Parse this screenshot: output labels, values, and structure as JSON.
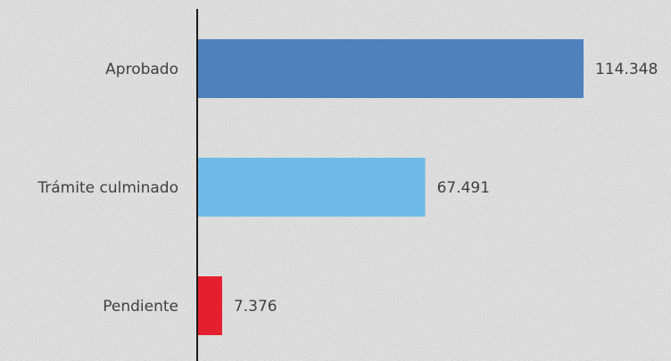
{
  "chart_data": {
    "type": "bar",
    "orientation": "horizontal",
    "categories": [
      "Aprobado",
      "Trámite culminado",
      "Pendiente"
    ],
    "values": [
      114348,
      67491,
      7376
    ],
    "value_labels": [
      "114.348",
      "67.491",
      "7.376"
    ],
    "colors": [
      "#4f81bd",
      "#6ebbe9",
      "#e4202e"
    ],
    "title": "",
    "xlabel": "",
    "ylabel": "",
    "xlim": [
      0,
      114348
    ],
    "grid": false,
    "legend": "none"
  }
}
